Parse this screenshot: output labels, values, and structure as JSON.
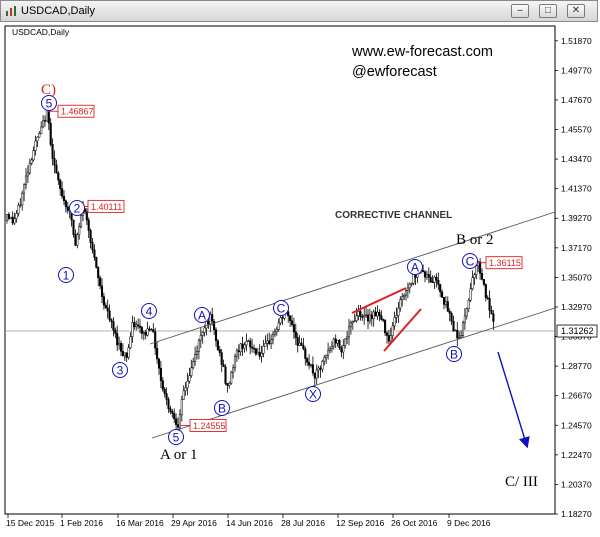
{
  "window": {
    "title": "USDCAD,Daily",
    "min_glyph": "–",
    "max_glyph": "□",
    "close_glyph": "✕"
  },
  "chart_data": {
    "type": "candlestick",
    "symbol_label": "USDCAD,Daily",
    "watermark": [
      "www.ew-forecast.com",
      "@ewforecast"
    ],
    "y_ticks": [
      "1.51870",
      "1.49770",
      "1.47670",
      "1.45570",
      "1.43470",
      "1.41370",
      "1.39270",
      "1.37170",
      "1.35070",
      "1.32970",
      "1.30870",
      "1.28770",
      "1.26670",
      "1.24570",
      "1.22470",
      "1.20370",
      "1.18270"
    ],
    "y_range": [
      1.1827,
      1.5292
    ],
    "x_ticks": [
      "15 Dec 2015",
      "1 Feb 2016",
      "16 Mar 2016",
      "29 Apr 2016",
      "14 Jun 2016",
      "28 Jul 2016",
      "12 Sep 2016",
      "26 Oct 2016",
      "9 Dec 2016"
    ],
    "current_price": "1.31262",
    "price_labels": [
      {
        "text": "1.46867",
        "value": 1.46867
      },
      {
        "text": "1.40111",
        "value": 1.40111
      },
      {
        "text": "1.24555",
        "value": 1.24555
      },
      {
        "text": "1.36115",
        "value": 1.36115
      }
    ],
    "channel_label": "CORRECTIVE CHANNEL",
    "wave_labels": {
      "c_red": "C)",
      "w5": "5",
      "w1": "1",
      "w2": "2",
      "w3": "3",
      "w4": "4",
      "wA1": "A",
      "wB1": "B",
      "wC1": "C",
      "wX": "X",
      "wA2": "A",
      "wB2": "B",
      "wC2": "C",
      "w5b": "5"
    },
    "text_labels": {
      "b_or_2": "B or 2",
      "a_or_1": "A or 1",
      "c_iii": "C/ III"
    },
    "swing_path": [
      [
        0,
        1.398
      ],
      [
        8,
        1.39
      ],
      [
        14,
        1.4
      ],
      [
        22,
        1.425
      ],
      [
        30,
        1.445
      ],
      [
        36,
        1.455
      ],
      [
        42,
        1.469
      ],
      [
        48,
        1.435
      ],
      [
        54,
        1.415
      ],
      [
        60,
        1.404
      ],
      [
        66,
        1.395
      ],
      [
        70,
        1.372
      ],
      [
        74,
        1.385
      ],
      [
        78,
        1.401
      ],
      [
        84,
        1.385
      ],
      [
        90,
        1.36
      ],
      [
        98,
        1.335
      ],
      [
        106,
        1.318
      ],
      [
        112,
        1.306
      ],
      [
        117,
        1.298
      ],
      [
        122,
        1.295
      ],
      [
        128,
        1.318
      ],
      [
        133,
        1.315
      ],
      [
        140,
        1.31
      ],
      [
        146,
        1.318
      ],
      [
        150,
        1.303
      ],
      [
        156,
        1.278
      ],
      [
        162,
        1.262
      ],
      [
        168,
        1.253
      ],
      [
        174,
        1.2456
      ],
      [
        178,
        1.268
      ],
      [
        186,
        1.285
      ],
      [
        194,
        1.305
      ],
      [
        200,
        1.318
      ],
      [
        206,
        1.322
      ],
      [
        212,
        1.302
      ],
      [
        218,
        1.288
      ],
      [
        222,
        1.27
      ],
      [
        226,
        1.283
      ],
      [
        232,
        1.298
      ],
      [
        240,
        1.305
      ],
      [
        248,
        1.3
      ],
      [
        256,
        1.296
      ],
      [
        264,
        1.305
      ],
      [
        272,
        1.315
      ],
      [
        280,
        1.326
      ],
      [
        286,
        1.32
      ],
      [
        292,
        1.306
      ],
      [
        298,
        1.298
      ],
      [
        304,
        1.29
      ],
      [
        310,
        1.28
      ],
      [
        316,
        1.287
      ],
      [
        322,
        1.296
      ],
      [
        330,
        1.307
      ],
      [
        336,
        1.3
      ],
      [
        342,
        1.309
      ],
      [
        348,
        1.32
      ],
      [
        354,
        1.327
      ],
      [
        360,
        1.321
      ],
      [
        366,
        1.324
      ],
      [
        372,
        1.326
      ],
      [
        378,
        1.318
      ],
      [
        384,
        1.307
      ],
      [
        390,
        1.322
      ],
      [
        396,
        1.335
      ],
      [
        402,
        1.343
      ],
      [
        408,
        1.35
      ],
      [
        414,
        1.358
      ],
      [
        420,
        1.353
      ],
      [
        426,
        1.348
      ],
      [
        432,
        1.35
      ],
      [
        438,
        1.336
      ],
      [
        444,
        1.325
      ],
      [
        450,
        1.312
      ],
      [
        455,
        1.308
      ],
      [
        460,
        1.322
      ],
      [
        464,
        1.338
      ],
      [
        468,
        1.352
      ],
      [
        472,
        1.3612
      ],
      [
        476,
        1.355
      ],
      [
        480,
        1.34
      ],
      [
        484,
        1.33
      ],
      [
        488,
        1.318
      ],
      [
        492,
        1.306
      ]
    ]
  }
}
